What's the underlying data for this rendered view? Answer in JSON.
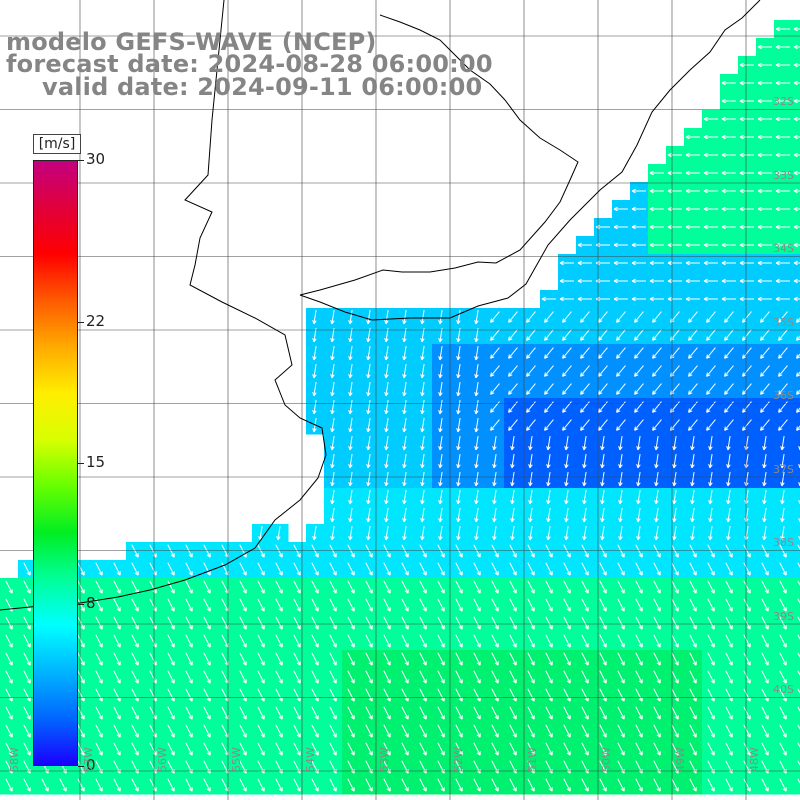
{
  "header": {
    "line1": "modelo GEFS-WAVE (NCEP)",
    "line2": "forecast date: 2024-08-28 06:00:00",
    "line3": "valid date: 2024-09-11 06:00:00"
  },
  "colorbar": {
    "units": "[m/s]",
    "labels": [
      "30",
      "22",
      "15",
      "8",
      "0"
    ],
    "label_values": [
      30,
      22,
      15,
      8,
      0
    ],
    "min": 0,
    "max": 30,
    "stops": [
      "#1a00ff",
      "#0066ff",
      "#00b4ff",
      "#00ffff",
      "#00ff9a",
      "#00ee22",
      "#66ff00",
      "#d8ff00",
      "#ffee00",
      "#ffaa00",
      "#ff5a00",
      "#ff0000",
      "#e0003a",
      "#c40080"
    ]
  },
  "map": {
    "latitude_labels": [
      "32S",
      "33S",
      "34S",
      "35S",
      "36S",
      "37S",
      "38S",
      "39S",
      "40S"
    ],
    "longitude_labels": [
      "58W",
      "57W",
      "56W",
      "55W",
      "54W",
      "53W",
      "52W",
      "51W",
      "50W",
      "49W",
      "48W"
    ],
    "wind_field_note": "",
    "colors": {
      "land": "#ffffff",
      "coast": "#000000",
      "grid": "#444444",
      "arrow": "#ffffff"
    }
  }
}
